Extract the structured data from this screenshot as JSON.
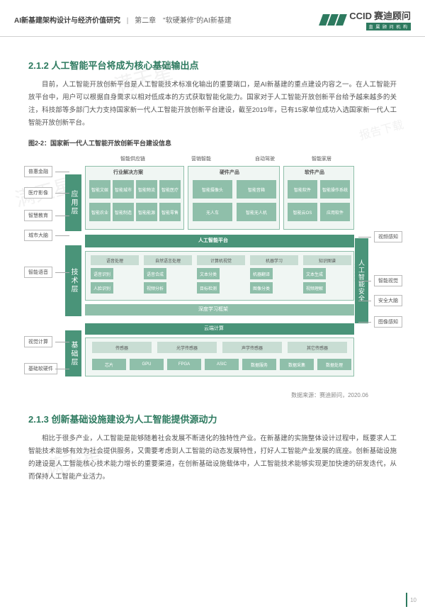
{
  "header": {
    "title": "AI新基建架构设计与经济价值研究",
    "chapter": "第二章　\"软硬兼修\"的AI新基建",
    "brand_en": "CCID",
    "brand_cn": "赛迪顾问",
    "brand_tag": "直 属 顾 问 机 构"
  },
  "section1": {
    "heading": "2.1.2  人工智能平台将成为核心基础输出点",
    "body": "目前，人工智能开放创新平台是人工智能技术标准化输出的重要端口，是AI新基建的重点建设内容之一。在人工智能开放平台中，用户可以根据自身需求以相对低成本的方式获取智能化能力。国家对于人工智能开放创新平台给予越来越多的关注，科技部等多部门大力支持国家新一代人工智能开放创新平台建设，截至2019年，已有15家单位成功入选国家新一代人工智能开放创新平台。"
  },
  "figure": {
    "caption": "图2-2：国家新一代人工智能开放创新平台建设信息",
    "layers": {
      "app": "应用层",
      "tech": "技术层",
      "base": "基础层",
      "side": "人工智能安全"
    },
    "row_labels": {
      "l1": "行业解决方案",
      "l2": "硬件产品",
      "l3": "软件产品",
      "l4": "人工智能平台",
      "l5": "深度学习框架",
      "l6": "云端计算"
    },
    "top_cats": {
      "c1": "智能供应链",
      "c2": "营销智能",
      "c3": "自动驾驶",
      "c4": "智能家居"
    },
    "callouts_left": [
      "普惠金融",
      "医疗影像",
      "智慧教育",
      "城市大脑",
      "智能语音",
      "视觉计算",
      "基础软硬件"
    ],
    "callouts_right": [
      "视频感知",
      "智能视觉",
      "安全大脑",
      "图像感知"
    ],
    "minis": {
      "row1": [
        "智能文娱",
        "智能城市",
        "智能物流",
        "智能医疗",
        "智能农业",
        "智能制造",
        "智能能源",
        "智能零售"
      ],
      "row2": [
        "智能摄像头",
        "智能音箱",
        "无人车",
        "智能无人机"
      ],
      "row3": [
        "智能软件",
        "智能操作系统",
        "智能云OS",
        "应用软件"
      ],
      "tech1": [
        "语音处理",
        "自然语言处理",
        "计算机视觉",
        "机器学习",
        "知识图谱"
      ],
      "tech2": [
        "语音识别",
        "语音合成",
        "文本分类",
        "机器翻译",
        "文本生成",
        "人脸识别",
        "视频分析",
        "目标检测",
        "图像分类",
        "视频理解"
      ],
      "base1": [
        "传感器",
        "光学传感器",
        "声学传感器",
        "其它传感器"
      ],
      "base2": [
        "芯片",
        "GPU",
        "FPGA",
        "ASIC",
        "数据服务",
        "数据采集",
        "数据处理"
      ]
    },
    "source": "数据来源：赛迪顾问，2020.06"
  },
  "section2": {
    "heading": "2.1.3  创新基础设施建设为人工智能提供源动力",
    "body": "相比于很多产业，人工智能是能够随着社会发展不断进化的独特性产业。在新基建的实施整体设计过程中，既要求人工智能技术能够有效为社会提供服务，又需要考虑到人工智能的动态发展特性，打好人工智能产业发展的底座。创新基础设施的建设是人工智能核心技术能力增长的重要渠道，在创新基础设施载体中，人工智能技术能够实现更加快速的研发迭代，从而保持人工智能产业活力。"
  },
  "page_number": "10",
  "watermarks": [
    "满天星",
    "满天星",
    "满天星",
    "报告下载"
  ]
}
